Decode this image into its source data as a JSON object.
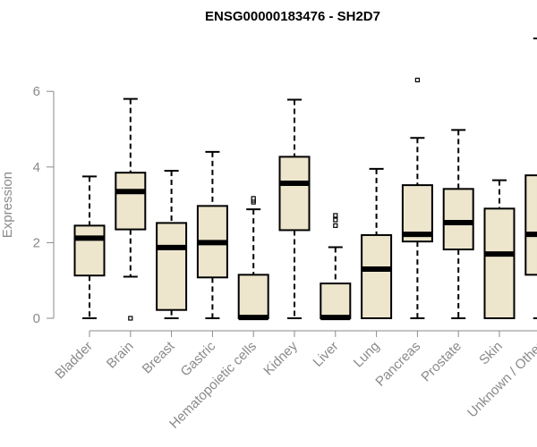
{
  "chart_data": {
    "type": "boxplot",
    "title": "ENSG00000183476 - SH2D7",
    "xlabel": "",
    "ylabel": "Expression",
    "ylim": [
      0,
      7.5
    ],
    "yticks": [
      0,
      2,
      4,
      6
    ],
    "grid": false,
    "legend": "none",
    "colors": {
      "box_fill": "#ede6cd",
      "box_stroke": "#000000",
      "axis": "#8a8a8a",
      "median": "#000000"
    },
    "categories": [
      "Bladder",
      "Brain",
      "Breast",
      "Gastric",
      "Hematopoietic cells",
      "Kidney",
      "Liver",
      "Lung",
      "Pancreas",
      "Prostate",
      "Skin",
      "Unknown / Other"
    ],
    "boxes": [
      {
        "label": "Bladder",
        "whisker_low": 0,
        "q1": 1.13,
        "median": 2.12,
        "q3": 2.45,
        "whisker_high": 3.75,
        "outliers": []
      },
      {
        "label": "Brain",
        "whisker_low": 1.1,
        "q1": 2.35,
        "median": 3.35,
        "q3": 3.85,
        "whisker_high": 5.8,
        "outliers": [
          0
        ]
      },
      {
        "label": "Breast",
        "whisker_low": 0,
        "q1": 0.22,
        "median": 1.87,
        "q3": 2.52,
        "whisker_high": 3.9,
        "outliers": []
      },
      {
        "label": "Gastric",
        "whisker_low": 0,
        "q1": 1.08,
        "median": 2.0,
        "q3": 2.97,
        "whisker_high": 4.4,
        "outliers": []
      },
      {
        "label": "Hematopoietic cells",
        "whisker_low": 0,
        "q1": 0,
        "median": 0.02,
        "q3": 1.15,
        "whisker_high": 2.88,
        "outliers": [
          3.07,
          3.12,
          3.17
        ]
      },
      {
        "label": "Kidney",
        "whisker_low": 0,
        "q1": 2.33,
        "median": 3.57,
        "q3": 4.27,
        "whisker_high": 5.78,
        "outliers": []
      },
      {
        "label": "Liver",
        "whisker_low": 0,
        "q1": 0,
        "median": 0.02,
        "q3": 0.92,
        "whisker_high": 1.88,
        "outliers": [
          2.45,
          2.6,
          2.72
        ]
      },
      {
        "label": "Lung",
        "whisker_low": 0,
        "q1": 0,
        "median": 1.3,
        "q3": 2.2,
        "whisker_high": 3.95,
        "outliers": []
      },
      {
        "label": "Pancreas",
        "whisker_low": 0,
        "q1": 2.03,
        "median": 2.22,
        "q3": 3.52,
        "whisker_high": 4.77,
        "outliers": [
          6.3
        ]
      },
      {
        "label": "Prostate",
        "whisker_low": 0,
        "q1": 1.82,
        "median": 2.53,
        "q3": 3.42,
        "whisker_high": 4.98,
        "outliers": []
      },
      {
        "label": "Skin",
        "whisker_low": 0,
        "q1": 0,
        "median": 1.7,
        "q3": 2.9,
        "whisker_high": 3.65,
        "outliers": []
      },
      {
        "label": "Unknown / Other",
        "whisker_low": 0,
        "q1": 1.15,
        "median": 2.22,
        "q3": 3.78,
        "whisker_high": 7.4,
        "outliers": []
      }
    ]
  }
}
